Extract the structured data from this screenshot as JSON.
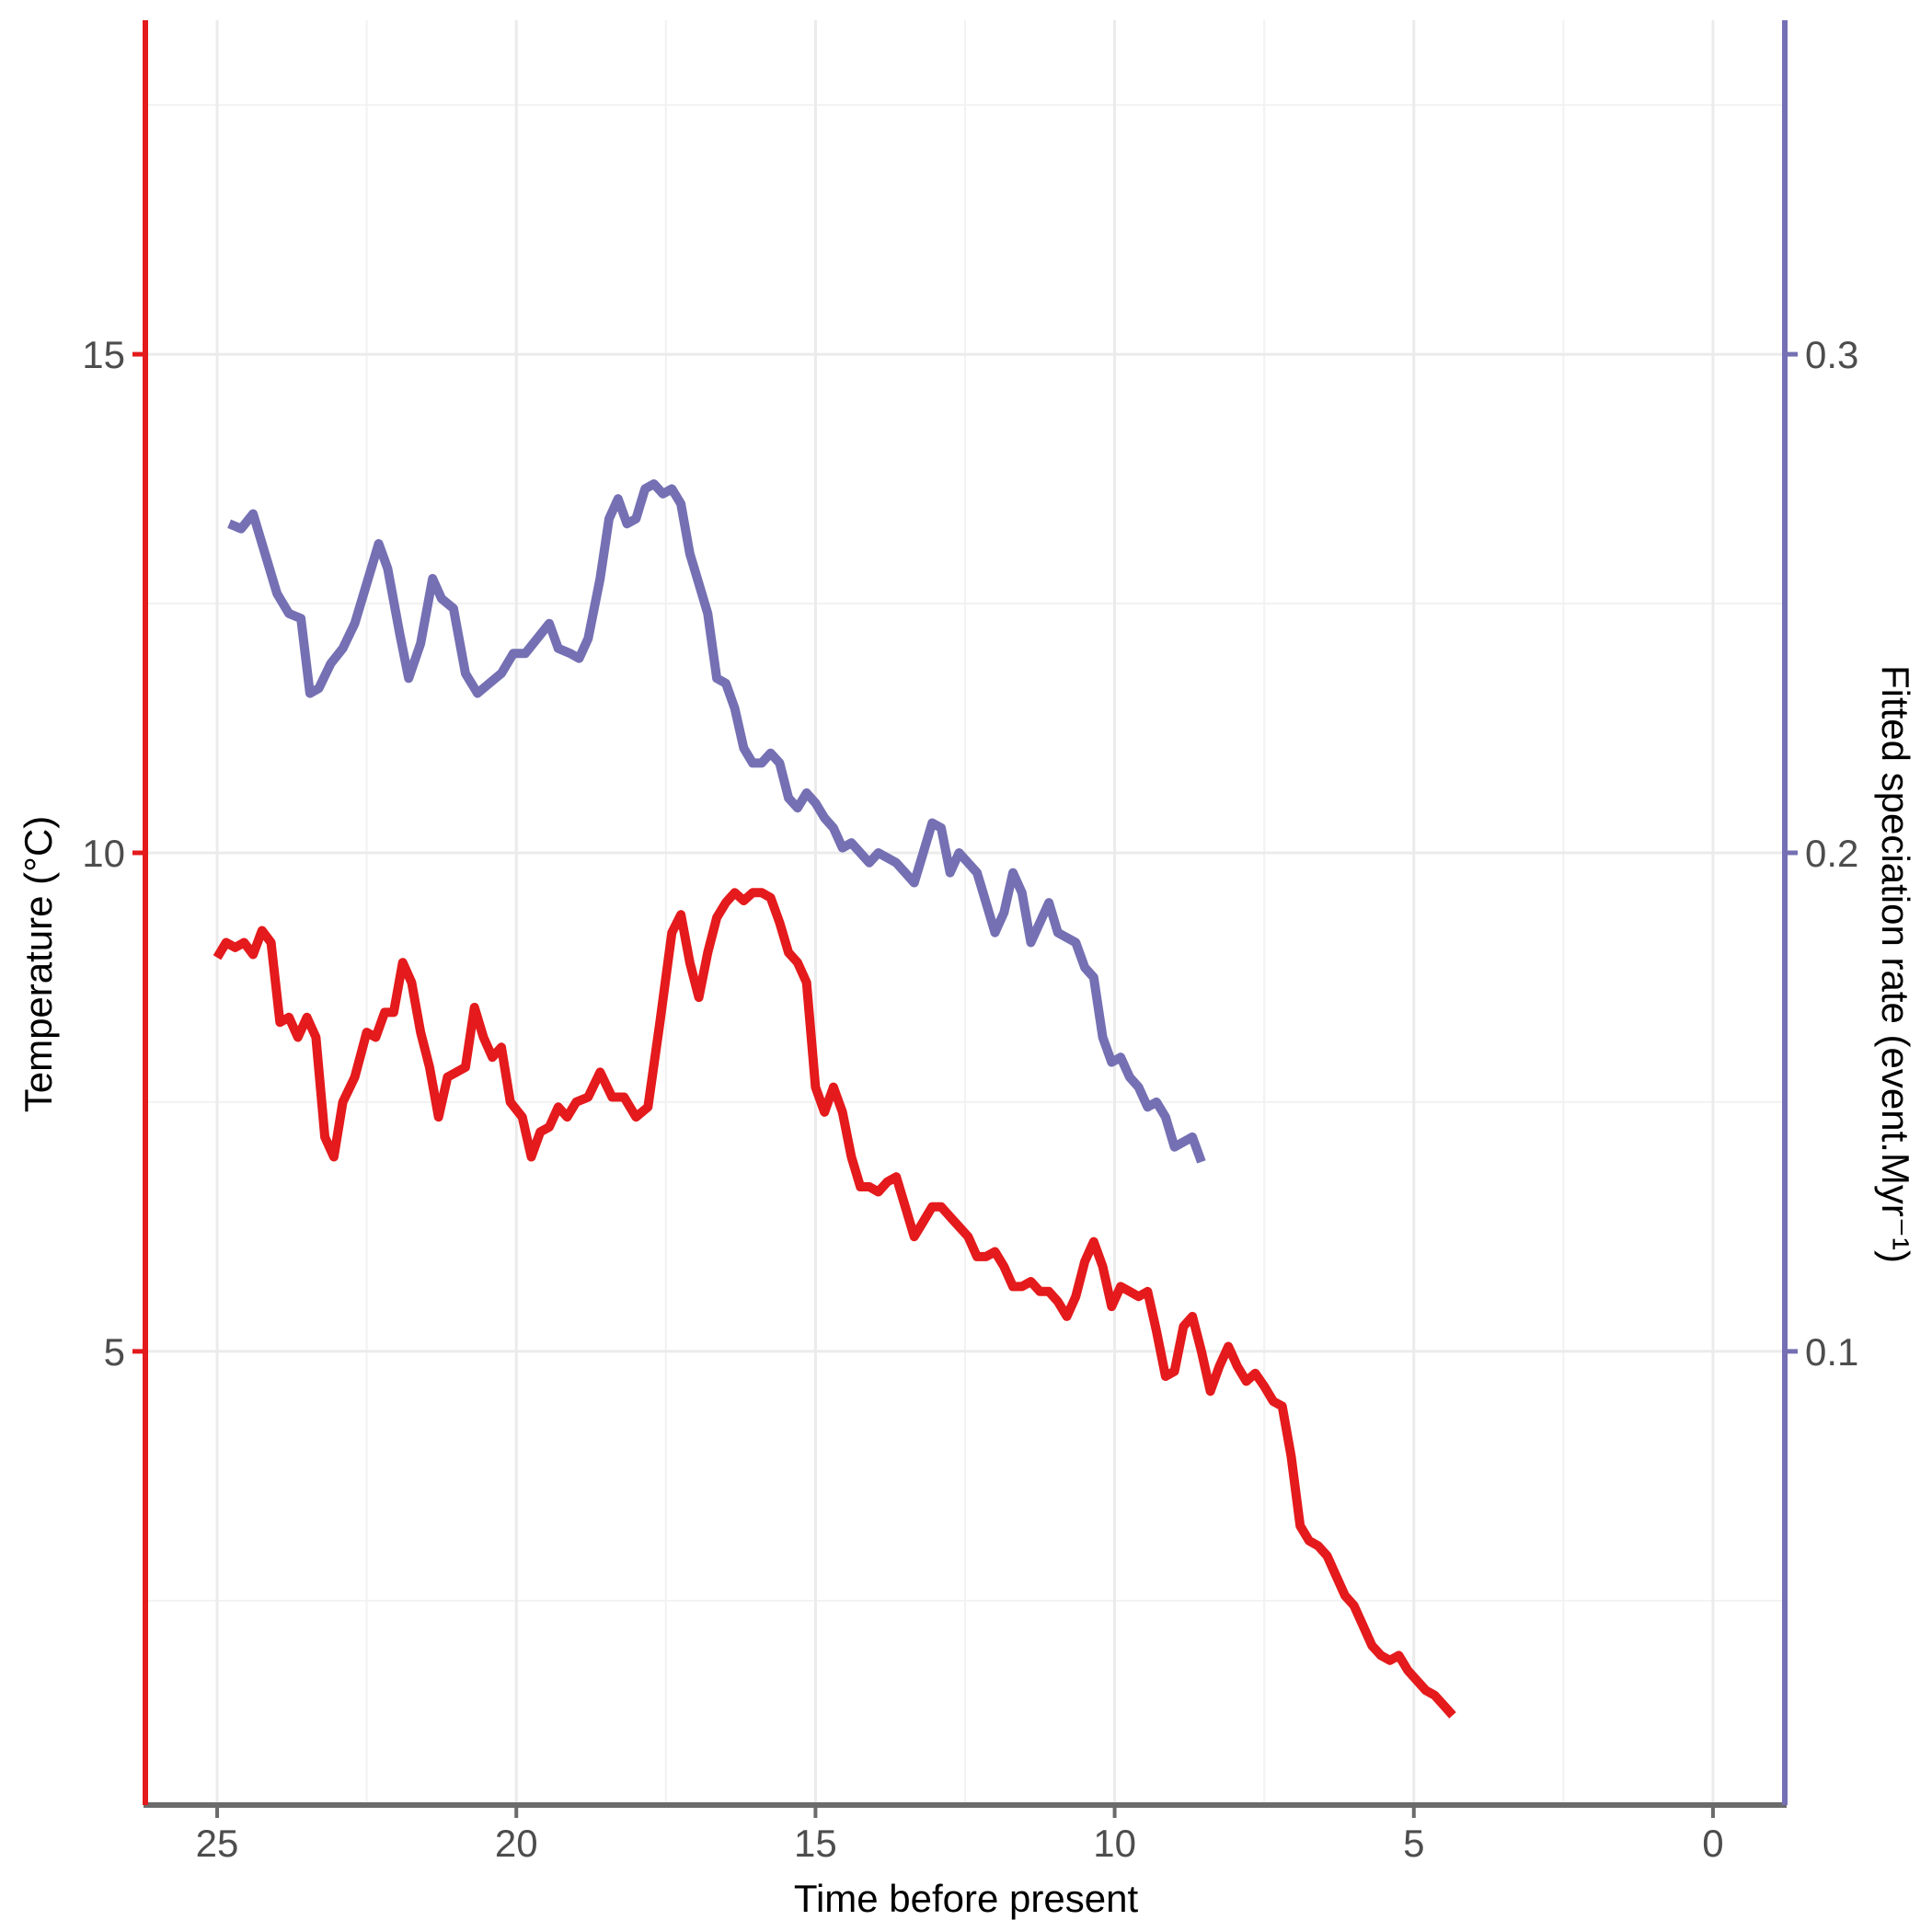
{
  "chart_data": {
    "type": "line",
    "xlabel": "Time before present",
    "ylabel_left": "Temperature (°C)",
    "ylabel_right": "Fitted speciation rate (event.Myr⁻¹)",
    "x_ticks": [
      "25",
      "20",
      "15",
      "10",
      "5",
      "0"
    ],
    "x_tick_values": [
      25,
      20,
      15,
      10,
      5,
      0
    ],
    "y_left_ticks": [
      "5",
      "10",
      "15"
    ],
    "y_left_tick_values": [
      5,
      10,
      15
    ],
    "y_right_ticks": [
      "0.1",
      "0.2",
      "0.3"
    ],
    "y_right_tick_values": [
      0.1,
      0.2,
      0.3
    ],
    "xlim": [
      26.2,
      -1.2
    ],
    "ylim_left": [
      0.45,
      18.35
    ],
    "ylim_right": [
      0.009,
      0.367
    ],
    "x_reversed": true,
    "grid": true,
    "series": [
      {
        "axis": "left",
        "color": "#e41a1c",
        "points": [
          [
            25.0,
            8.95
          ],
          [
            24.85,
            9.1
          ],
          [
            24.7,
            9.05
          ],
          [
            24.55,
            9.1
          ],
          [
            24.4,
            8.98
          ],
          [
            24.25,
            9.22
          ],
          [
            24.1,
            9.1
          ],
          [
            23.95,
            8.3
          ],
          [
            23.8,
            8.35
          ],
          [
            23.65,
            8.15
          ],
          [
            23.5,
            8.35
          ],
          [
            23.35,
            8.15
          ],
          [
            23.2,
            7.15
          ],
          [
            23.05,
            6.95
          ],
          [
            22.9,
            7.5
          ],
          [
            22.7,
            7.75
          ],
          [
            22.5,
            8.2
          ],
          [
            22.35,
            8.15
          ],
          [
            22.2,
            8.4
          ],
          [
            22.05,
            8.4
          ],
          [
            21.9,
            8.9
          ],
          [
            21.75,
            8.7
          ],
          [
            21.6,
            8.2
          ],
          [
            21.45,
            7.85
          ],
          [
            21.3,
            7.35
          ],
          [
            21.15,
            7.75
          ],
          [
            21.0,
            7.8
          ],
          [
            20.85,
            7.85
          ],
          [
            20.7,
            8.45
          ],
          [
            20.55,
            8.15
          ],
          [
            20.4,
            7.95
          ],
          [
            20.25,
            8.05
          ],
          [
            20.1,
            7.5
          ],
          [
            19.9,
            7.35
          ],
          [
            19.75,
            6.95
          ],
          [
            19.6,
            7.2
          ],
          [
            19.45,
            7.25
          ],
          [
            19.3,
            7.45
          ],
          [
            19.15,
            7.35
          ],
          [
            19.0,
            7.5
          ],
          [
            18.8,
            7.55
          ],
          [
            18.6,
            7.8
          ],
          [
            18.4,
            7.55
          ],
          [
            18.2,
            7.55
          ],
          [
            18.0,
            7.35
          ],
          [
            17.8,
            7.45
          ],
          [
            17.6,
            8.3
          ],
          [
            17.4,
            9.2
          ],
          [
            17.25,
            9.38
          ],
          [
            17.1,
            8.9
          ],
          [
            16.95,
            8.55
          ],
          [
            16.8,
            9.0
          ],
          [
            16.65,
            9.35
          ],
          [
            16.5,
            9.5
          ],
          [
            16.35,
            9.6
          ],
          [
            16.2,
            9.52
          ],
          [
            16.05,
            9.6
          ],
          [
            15.9,
            9.6
          ],
          [
            15.75,
            9.55
          ],
          [
            15.6,
            9.3
          ],
          [
            15.45,
            9.0
          ],
          [
            15.3,
            8.9
          ],
          [
            15.15,
            8.7
          ],
          [
            15.0,
            7.65
          ],
          [
            14.85,
            7.4
          ],
          [
            14.7,
            7.65
          ],
          [
            14.55,
            7.4
          ],
          [
            14.4,
            6.95
          ],
          [
            14.25,
            6.65
          ],
          [
            14.1,
            6.65
          ],
          [
            13.95,
            6.6
          ],
          [
            13.8,
            6.7
          ],
          [
            13.65,
            6.75
          ],
          [
            13.5,
            6.45
          ],
          [
            13.35,
            6.15
          ],
          [
            13.2,
            6.3
          ],
          [
            13.05,
            6.45
          ],
          [
            12.9,
            6.45
          ],
          [
            12.75,
            6.35
          ],
          [
            12.6,
            6.25
          ],
          [
            12.45,
            6.15
          ],
          [
            12.3,
            5.95
          ],
          [
            12.15,
            5.95
          ],
          [
            12.0,
            6.0
          ],
          [
            11.85,
            5.85
          ],
          [
            11.7,
            5.65
          ],
          [
            11.55,
            5.65
          ],
          [
            11.4,
            5.7
          ],
          [
            11.25,
            5.6
          ],
          [
            11.1,
            5.6
          ],
          [
            10.95,
            5.5
          ],
          [
            10.8,
            5.35
          ],
          [
            10.65,
            5.55
          ],
          [
            10.5,
            5.9
          ],
          [
            10.35,
            6.1
          ],
          [
            10.2,
            5.85
          ],
          [
            10.05,
            5.45
          ],
          [
            9.9,
            5.65
          ],
          [
            9.75,
            5.6
          ],
          [
            9.6,
            5.55
          ],
          [
            9.45,
            5.6
          ],
          [
            9.3,
            5.2
          ],
          [
            9.15,
            4.75
          ],
          [
            9.0,
            4.8
          ],
          [
            8.85,
            5.25
          ],
          [
            8.7,
            5.35
          ],
          [
            8.55,
            5.0
          ],
          [
            8.4,
            4.6
          ],
          [
            8.25,
            4.85
          ],
          [
            8.1,
            5.05
          ],
          [
            7.95,
            4.85
          ],
          [
            7.8,
            4.7
          ],
          [
            7.65,
            4.78
          ],
          [
            7.5,
            4.65
          ],
          [
            7.35,
            4.5
          ],
          [
            7.2,
            4.45
          ],
          [
            7.05,
            3.95
          ],
          [
            6.9,
            3.25
          ],
          [
            6.75,
            3.1
          ],
          [
            6.6,
            3.05
          ],
          [
            6.45,
            2.95
          ],
          [
            6.3,
            2.75
          ],
          [
            6.15,
            2.55
          ],
          [
            6.0,
            2.45
          ],
          [
            5.85,
            2.25
          ],
          [
            5.7,
            2.05
          ],
          [
            5.55,
            1.95
          ],
          [
            5.4,
            1.9
          ],
          [
            5.25,
            1.95
          ],
          [
            5.1,
            1.8
          ],
          [
            4.95,
            1.7
          ],
          [
            4.8,
            1.6
          ],
          [
            4.65,
            1.55
          ],
          [
            4.5,
            1.45
          ],
          [
            4.35,
            1.35
          ]
        ]
      },
      {
        "axis": "right",
        "color": "#7570b3",
        "points": [
          [
            24.8,
            0.266
          ],
          [
            24.6,
            0.265
          ],
          [
            24.4,
            0.268
          ],
          [
            24.0,
            0.252
          ],
          [
            23.8,
            0.248
          ],
          [
            23.6,
            0.247
          ],
          [
            23.45,
            0.232
          ],
          [
            23.3,
            0.233
          ],
          [
            23.1,
            0.238
          ],
          [
            22.9,
            0.241
          ],
          [
            22.7,
            0.246
          ],
          [
            22.5,
            0.254
          ],
          [
            22.3,
            0.262
          ],
          [
            22.15,
            0.257
          ],
          [
            21.95,
            0.244
          ],
          [
            21.8,
            0.235
          ],
          [
            21.6,
            0.242
          ],
          [
            21.4,
            0.255
          ],
          [
            21.25,
            0.251
          ],
          [
            21.05,
            0.249
          ],
          [
            20.85,
            0.236
          ],
          [
            20.65,
            0.232
          ],
          [
            20.45,
            0.234
          ],
          [
            20.25,
            0.236
          ],
          [
            20.05,
            0.24
          ],
          [
            19.85,
            0.24
          ],
          [
            19.65,
            0.243
          ],
          [
            19.45,
            0.246
          ],
          [
            19.3,
            0.241
          ],
          [
            19.1,
            0.24
          ],
          [
            18.95,
            0.239
          ],
          [
            18.8,
            0.243
          ],
          [
            18.6,
            0.255
          ],
          [
            18.45,
            0.267
          ],
          [
            18.3,
            0.271
          ],
          [
            18.15,
            0.266
          ],
          [
            18.0,
            0.267
          ],
          [
            17.85,
            0.273
          ],
          [
            17.7,
            0.274
          ],
          [
            17.55,
            0.272
          ],
          [
            17.4,
            0.273
          ],
          [
            17.25,
            0.27
          ],
          [
            17.1,
            0.26
          ],
          [
            16.95,
            0.254
          ],
          [
            16.8,
            0.248
          ],
          [
            16.65,
            0.235
          ],
          [
            16.5,
            0.234
          ],
          [
            16.35,
            0.229
          ],
          [
            16.2,
            0.221
          ],
          [
            16.05,
            0.218
          ],
          [
            15.9,
            0.218
          ],
          [
            15.75,
            0.22
          ],
          [
            15.6,
            0.218
          ],
          [
            15.45,
            0.211
          ],
          [
            15.3,
            0.209
          ],
          [
            15.15,
            0.212
          ],
          [
            15.0,
            0.21
          ],
          [
            14.85,
            0.207
          ],
          [
            14.7,
            0.205
          ],
          [
            14.55,
            0.201
          ],
          [
            14.4,
            0.202
          ],
          [
            14.25,
            0.2
          ],
          [
            14.1,
            0.198
          ],
          [
            13.95,
            0.2
          ],
          [
            13.8,
            0.199
          ],
          [
            13.65,
            0.198
          ],
          [
            13.5,
            0.196
          ],
          [
            13.35,
            0.194
          ],
          [
            13.2,
            0.2
          ],
          [
            13.05,
            0.206
          ],
          [
            12.9,
            0.205
          ],
          [
            12.75,
            0.196
          ],
          [
            12.6,
            0.2
          ],
          [
            12.45,
            0.198
          ],
          [
            12.3,
            0.196
          ],
          [
            12.15,
            0.19
          ],
          [
            12.0,
            0.184
          ],
          [
            11.85,
            0.188
          ],
          [
            11.7,
            0.196
          ],
          [
            11.55,
            0.192
          ],
          [
            11.4,
            0.182
          ],
          [
            11.25,
            0.186
          ],
          [
            11.1,
            0.19
          ],
          [
            10.95,
            0.184
          ],
          [
            10.8,
            0.183
          ],
          [
            10.65,
            0.182
          ],
          [
            10.5,
            0.177
          ],
          [
            10.35,
            0.175
          ],
          [
            10.2,
            0.163
          ],
          [
            10.05,
            0.158
          ],
          [
            9.9,
            0.159
          ],
          [
            9.75,
            0.155
          ],
          [
            9.6,
            0.153
          ],
          [
            9.45,
            0.149
          ],
          [
            9.3,
            0.15
          ],
          [
            9.15,
            0.147
          ],
          [
            9.0,
            0.141
          ],
          [
            8.85,
            0.142
          ],
          [
            8.7,
            0.143
          ],
          [
            8.55,
            0.138
          ]
        ]
      }
    ]
  }
}
